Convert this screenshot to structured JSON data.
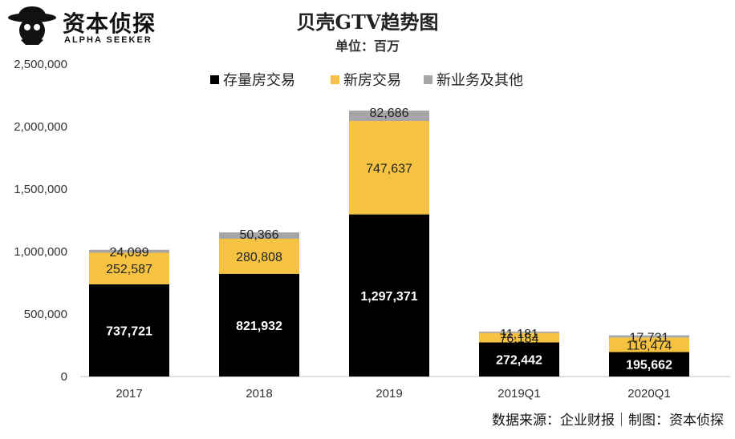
{
  "brand": {
    "name": "资本侦探",
    "tagline": "ALPHA SEEKER"
  },
  "source_note": "数据来源：企业财报｜制图：资本侦探",
  "colors": {
    "existing": "#000000",
    "new": "#F5C242",
    "other": "#A6A6A6",
    "axis": "#999999",
    "text": "#333333"
  },
  "chart_data": {
    "type": "bar",
    "stacked": true,
    "title": "贝壳GTV趋势图",
    "subtitle": "单位：百万",
    "legend_position": "top",
    "categories": [
      "2017",
      "2018",
      "2019",
      "2019Q1",
      "2020Q1"
    ],
    "ylim": [
      0,
      2500000
    ],
    "yticks": [
      0,
      500000,
      1000000,
      1500000,
      2000000,
      2500000
    ],
    "ytick_labels": [
      "0",
      "500,000",
      "1,000,000",
      "1,500,000",
      "2,000,000",
      "2,500,000"
    ],
    "grid": false,
    "series": [
      {
        "name": "存量房交易",
        "color": "#000000",
        "values": [
          737721,
          821932,
          1297371,
          272442,
          195662
        ],
        "labels": [
          "737,721",
          "821,932",
          "1,297,371",
          "272,442",
          "195,662"
        ]
      },
      {
        "name": "新房交易",
        "color": "#F5C242",
        "values": [
          252587,
          280808,
          747637,
          76184,
          116474
        ],
        "labels": [
          "252,587",
          "280,808",
          "747,637",
          "76,184",
          "116,474"
        ]
      },
      {
        "name": "新业务及其他",
        "color": "#A6A6A6",
        "values": [
          24099,
          50366,
          82686,
          11181,
          17731
        ],
        "labels": [
          "24,099",
          "50,366",
          "82,686",
          "11,181",
          "17,731"
        ]
      }
    ]
  }
}
